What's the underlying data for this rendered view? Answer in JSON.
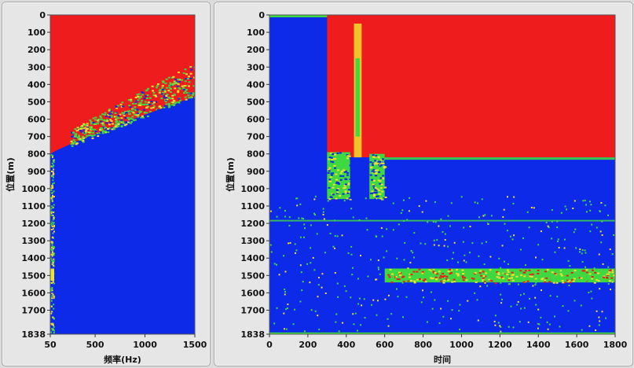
{
  "chart_data": [
    {
      "type": "heatmap",
      "title": "",
      "xlabel": "频率(Hz)",
      "ylabel": "位置(m)",
      "xlim": [
        50,
        1500
      ],
      "ylim": [
        0,
        1838
      ],
      "y_inverted": true,
      "x_ticks": [
        "50",
        "500",
        "1000",
        "1500"
      ],
      "y_ticks": [
        "0",
        "100",
        "200",
        "300",
        "400",
        "500",
        "600",
        "700",
        "800",
        "900",
        "1000",
        "1100",
        "1200",
        "1300",
        "1400",
        "1500",
        "1600",
        "1700",
        "1838"
      ],
      "colors": {
        "high": "#ee1c1c",
        "mid": "#f0e030",
        "low_mid": "#40d840",
        "low": "#0c2ae8"
      },
      "regions": [
        {
          "level": "high",
          "description_level": "red",
          "y_from": 0,
          "y_to_at_low_freq": 800,
          "y_to_at_high_freq": 470
        },
        {
          "level": "low",
          "y_from": 800,
          "y_to": 1838
        }
      ]
    },
    {
      "type": "heatmap",
      "title": "",
      "xlabel": "时间",
      "ylabel": "位置(m)",
      "xlim": [
        0,
        1800
      ],
      "ylim": [
        0,
        1838
      ],
      "y_inverted": true,
      "x_ticks": [
        "0",
        "200",
        "400",
        "600",
        "800",
        "1000",
        "1200",
        "1400",
        "1600",
        "1800"
      ],
      "y_ticks": [
        "0",
        "100",
        "200",
        "300",
        "400",
        "500",
        "600",
        "700",
        "800",
        "900",
        "1000",
        "1100",
        "1200",
        "1300",
        "1400",
        "1500",
        "1600",
        "1700",
        "1838"
      ],
      "colors": {
        "high": "#ee1c1c",
        "mid": "#f0e030",
        "low_mid": "#40d840",
        "low": "#0c2ae8"
      },
      "regions": [
        {
          "level": "high",
          "x_from": 300,
          "x_to": 1800,
          "y_from": 0,
          "y_to": 820
        },
        {
          "level": "low_mid",
          "x_from": 300,
          "x_to": 420,
          "y_from": 790,
          "y_to": 1060
        },
        {
          "level": "low_mid",
          "x_from": 520,
          "x_to": 600,
          "y_from": 800,
          "y_to": 1060
        },
        {
          "level": "low_mid",
          "x_from": 600,
          "x_to": 1800,
          "y_from": 1460,
          "y_to": 1540
        }
      ]
    }
  ]
}
